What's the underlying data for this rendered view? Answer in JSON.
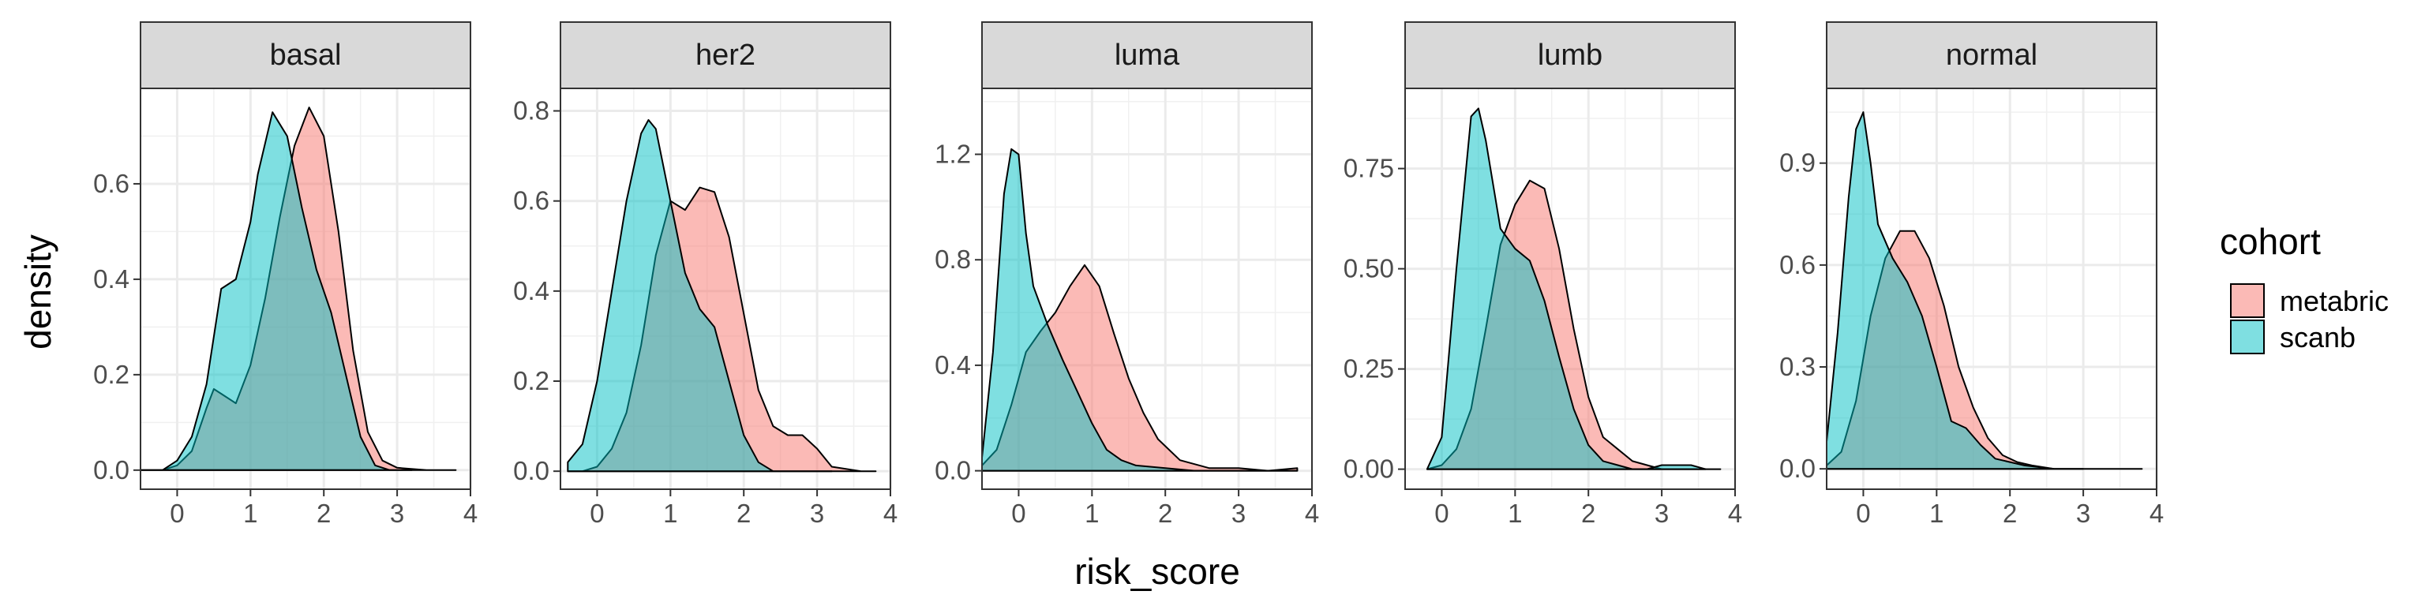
{
  "chart_data": {
    "type": "area",
    "xlabel": "risk_score",
    "ylabel": "density",
    "x_ticks": [
      0,
      1,
      2,
      3,
      4
    ],
    "xlim": [
      -0.5,
      4.0
    ],
    "grid": true,
    "legend": {
      "title": "cohort",
      "placement": "right",
      "entries": [
        {
          "name": "metabric",
          "color": "#F8766D"
        },
        {
          "name": "scanb",
          "color": "#00BFC4"
        }
      ]
    },
    "panels": [
      {
        "title": "basal",
        "ylim": [
          -0.04,
          0.8
        ],
        "y_ticks": [
          0.0,
          0.2,
          0.4,
          0.6
        ],
        "series": [
          {
            "name": "metabric",
            "x": [
              -0.5,
              -0.2,
              0.0,
              0.2,
              0.4,
              0.5,
              0.6,
              0.8,
              1.0,
              1.2,
              1.4,
              1.6,
              1.8,
              2.0,
              2.2,
              2.4,
              2.6,
              2.8,
              3.0,
              3.4,
              3.8
            ],
            "y": [
              0.0,
              0.0,
              0.01,
              0.04,
              0.13,
              0.17,
              0.16,
              0.14,
              0.22,
              0.36,
              0.53,
              0.68,
              0.76,
              0.7,
              0.5,
              0.25,
              0.08,
              0.02,
              0.005,
              0.0,
              0.0
            ]
          },
          {
            "name": "scanb",
            "x": [
              -0.5,
              -0.2,
              0.0,
              0.2,
              0.4,
              0.6,
              0.8,
              1.0,
              1.1,
              1.3,
              1.5,
              1.7,
              1.9,
              2.1,
              2.3,
              2.5,
              2.7,
              2.9,
              3.2
            ],
            "y": [
              0.0,
              0.0,
              0.02,
              0.07,
              0.18,
              0.38,
              0.4,
              0.52,
              0.62,
              0.75,
              0.7,
              0.55,
              0.42,
              0.33,
              0.2,
              0.07,
              0.01,
              0.0,
              0.0
            ]
          }
        ]
      },
      {
        "title": "her2",
        "ylim": [
          -0.04,
          0.85
        ],
        "y_ticks": [
          0.0,
          0.2,
          0.4,
          0.6,
          0.8
        ],
        "series": [
          {
            "name": "metabric",
            "x": [
              -0.4,
              -0.2,
              0.0,
              0.2,
              0.4,
              0.6,
              0.8,
              1.0,
              1.2,
              1.4,
              1.6,
              1.8,
              2.0,
              2.2,
              2.4,
              2.6,
              2.8,
              3.0,
              3.2,
              3.6,
              3.8
            ],
            "y": [
              0.0,
              0.0,
              0.01,
              0.05,
              0.13,
              0.28,
              0.48,
              0.6,
              0.58,
              0.63,
              0.62,
              0.52,
              0.35,
              0.18,
              0.1,
              0.08,
              0.08,
              0.05,
              0.01,
              0.0,
              0.0
            ]
          },
          {
            "name": "scanb",
            "x": [
              -0.4,
              -0.2,
              0.0,
              0.2,
              0.4,
              0.6,
              0.7,
              0.8,
              1.0,
              1.2,
              1.4,
              1.6,
              1.8,
              2.0,
              2.2,
              2.4,
              2.6,
              3.0,
              3.2
            ],
            "y": [
              0.02,
              0.06,
              0.2,
              0.4,
              0.6,
              0.75,
              0.78,
              0.76,
              0.6,
              0.44,
              0.36,
              0.32,
              0.2,
              0.08,
              0.02,
              0.0,
              0.0,
              0.0,
              0.0
            ]
          }
        ]
      },
      {
        "title": "luma",
        "ylim": [
          -0.07,
          1.45
        ],
        "y_ticks": [
          0.0,
          0.4,
          0.8,
          1.2
        ],
        "series": [
          {
            "name": "metabric",
            "x": [
              -0.5,
              -0.3,
              -0.1,
              0.1,
              0.3,
              0.5,
              0.7,
              0.9,
              1.1,
              1.3,
              1.5,
              1.7,
              1.9,
              2.2,
              2.6,
              3.0,
              3.4,
              3.8
            ],
            "y": [
              0.02,
              0.08,
              0.25,
              0.45,
              0.53,
              0.6,
              0.7,
              0.78,
              0.7,
              0.52,
              0.35,
              0.22,
              0.12,
              0.04,
              0.01,
              0.01,
              0.0,
              0.01
            ]
          },
          {
            "name": "scanb",
            "x": [
              -0.5,
              -0.35,
              -0.2,
              -0.1,
              0.0,
              0.1,
              0.2,
              0.4,
              0.6,
              0.8,
              1.0,
              1.2,
              1.4,
              1.6,
              2.0,
              2.4,
              3.0,
              3.8
            ],
            "y": [
              0.05,
              0.45,
              1.05,
              1.22,
              1.2,
              0.9,
              0.7,
              0.55,
              0.42,
              0.3,
              0.18,
              0.08,
              0.04,
              0.02,
              0.01,
              0.0,
              0.0,
              0.0
            ]
          }
        ]
      },
      {
        "title": "lumb",
        "ylim": [
          -0.05,
          0.95
        ],
        "y_ticks": [
          0.0,
          0.25,
          0.5,
          0.75
        ],
        "series": [
          {
            "name": "metabric",
            "x": [
              -0.2,
              0.0,
              0.2,
              0.4,
              0.6,
              0.8,
              1.0,
              1.2,
              1.4,
              1.6,
              1.8,
              2.0,
              2.2,
              2.4,
              2.6,
              2.8,
              3.0,
              3.2,
              3.6,
              3.8
            ],
            "y": [
              0.0,
              0.01,
              0.05,
              0.15,
              0.35,
              0.56,
              0.66,
              0.72,
              0.7,
              0.55,
              0.35,
              0.18,
              0.08,
              0.05,
              0.02,
              0.01,
              0.0,
              0.0,
              0.0,
              0.0
            ]
          },
          {
            "name": "scanb",
            "x": [
              -0.2,
              0.0,
              0.2,
              0.4,
              0.5,
              0.6,
              0.8,
              1.0,
              1.2,
              1.4,
              1.6,
              1.8,
              2.0,
              2.2,
              2.4,
              2.6,
              2.8,
              3.0,
              3.2,
              3.4,
              3.6
            ],
            "y": [
              0.0,
              0.08,
              0.5,
              0.88,
              0.9,
              0.82,
              0.6,
              0.55,
              0.52,
              0.42,
              0.28,
              0.15,
              0.06,
              0.02,
              0.01,
              0.0,
              0.0,
              0.01,
              0.01,
              0.01,
              0.0
            ]
          }
        ]
      },
      {
        "title": "normal",
        "ylim": [
          -0.06,
          1.12
        ],
        "y_ticks": [
          0.0,
          0.3,
          0.6,
          0.9
        ],
        "series": [
          {
            "name": "metabric",
            "x": [
              -0.5,
              -0.3,
              -0.1,
              0.1,
              0.3,
              0.5,
              0.7,
              0.9,
              1.1,
              1.3,
              1.5,
              1.7,
              1.9,
              2.1,
              2.3,
              2.6,
              3.0,
              3.8
            ],
            "y": [
              0.01,
              0.05,
              0.2,
              0.45,
              0.62,
              0.7,
              0.7,
              0.62,
              0.48,
              0.3,
              0.18,
              0.09,
              0.04,
              0.02,
              0.01,
              0.0,
              0.0,
              0.0
            ]
          },
          {
            "name": "scanb",
            "x": [
              -0.5,
              -0.35,
              -0.2,
              -0.1,
              0.0,
              0.1,
              0.2,
              0.4,
              0.6,
              0.8,
              1.0,
              1.2,
              1.4,
              1.6,
              1.8,
              2.0,
              2.2,
              2.6,
              3.0
            ],
            "y": [
              0.08,
              0.4,
              0.8,
              1.0,
              1.05,
              0.9,
              0.72,
              0.62,
              0.55,
              0.45,
              0.3,
              0.14,
              0.12,
              0.07,
              0.03,
              0.02,
              0.01,
              0.0,
              0.0
            ]
          }
        ]
      }
    ]
  }
}
